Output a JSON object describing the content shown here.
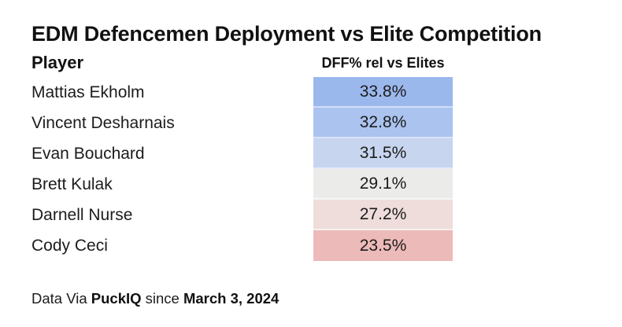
{
  "title": "EDM Defencemen Deployment vs Elite Competition",
  "table": {
    "player_header": "Player",
    "value_header": "DFF% rel vs Elites",
    "rows": [
      {
        "player": "Mattias Ekholm",
        "value": "33.8%",
        "color": "#9bb8ed"
      },
      {
        "player": "Vincent Desharnais",
        "value": "32.8%",
        "color": "#abc3ef"
      },
      {
        "player": "Evan Bouchard",
        "value": "31.5%",
        "color": "#c7d5ef"
      },
      {
        "player": "Brett Kulak",
        "value": "29.1%",
        "color": "#ebebea"
      },
      {
        "player": "Darnell Nurse",
        "value": "27.2%",
        "color": "#eedddb"
      },
      {
        "player": "Cody Ceci",
        "value": "23.5%",
        "color": "#ecbab8"
      }
    ]
  },
  "footer": {
    "prefix": "Data Via ",
    "source": "PuckIQ",
    "middle": " since ",
    "date": "March 3, 2024"
  },
  "chart_data": {
    "type": "table",
    "title": "EDM Defencemen Deployment vs Elite Competition",
    "columns": [
      "Player",
      "DFF% rel vs Elites"
    ],
    "players": [
      "Mattias Ekholm",
      "Vincent Desharnais",
      "Evan Bouchard",
      "Brett Kulak",
      "Darnell Nurse",
      "Cody Ceci"
    ],
    "values_pct": [
      33.8,
      32.8,
      31.5,
      29.1,
      27.2,
      23.5
    ],
    "cell_colors": [
      "#9bb8ed",
      "#abc3ef",
      "#c7d5ef",
      "#ebebea",
      "#eedddb",
      "#ecbab8"
    ],
    "color_scale": "diverging: blue = higher DFF% rel, red = lower DFF% rel",
    "legend_position": "none",
    "grid": false,
    "source_note": "Data Via PuckIQ since March 3, 2024"
  }
}
